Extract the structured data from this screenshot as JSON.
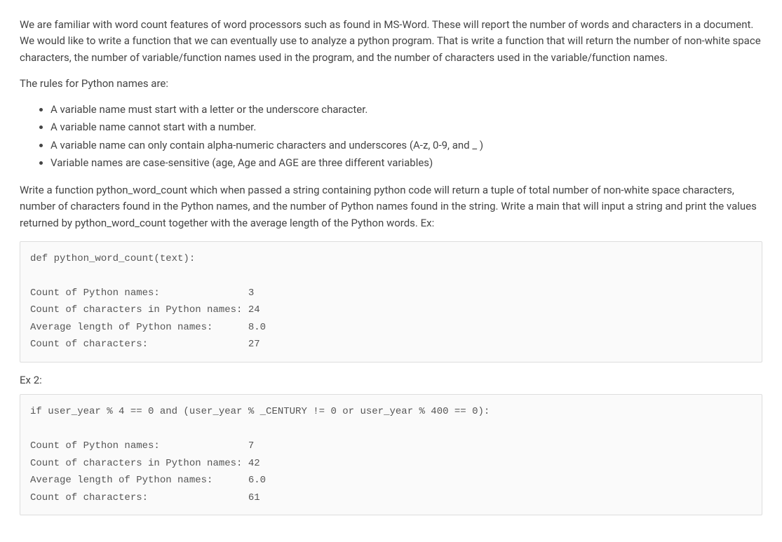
{
  "intro_para": "We are familiar with word count features of word processors such as found in MS-Word. These will report the number of words and characters in a document. We would like to write a function that we can eventually use to analyze a python program. That is write a function that will return the number of non-white space characters, the number of variable/function names used in the program, and the number of characters used in the variable/function names.",
  "rules_intro": "The rules for Python names are:",
  "rules": {
    "r1": "A variable name must start with a letter or the underscore character.",
    "r2": "A variable name cannot start with a number.",
    "r3": "A variable name can only contain alpha-numeric characters and underscores (A-z, 0-9, and _ )",
    "r4": "Variable names are case-sensitive (age, Age and AGE are three different variables)"
  },
  "task_para": "Write a function python_word_count which when passed a string containing python code will return a tuple of total number of non-white space characters, number of characters found in the Python names, and the number of Python names found in the string. Write a main that will input a string and print the values returned by python_word_count together with the average length of the Python words. Ex:",
  "code1": "def python_word_count(text):\n\nCount of Python names:               3\nCount of characters in Python names: 24\nAverage length of Python names:      8.0\nCount of characters:                 27",
  "ex2_label": "Ex 2:",
  "code2": "if user_year % 4 == 0 and (user_year % _CENTURY != 0 or user_year % 400 == 0):\n\nCount of Python names:               7\nCount of characters in Python names: 42\nAverage length of Python names:      6.0\nCount of characters:                 61"
}
